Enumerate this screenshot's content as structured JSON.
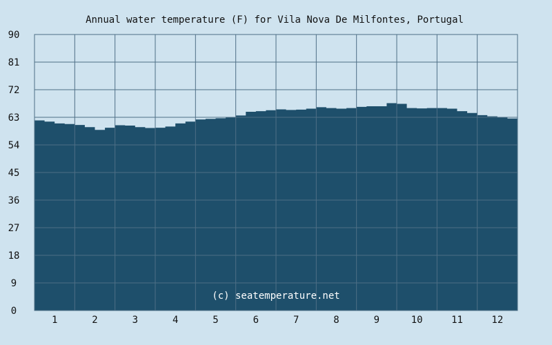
{
  "chart_data": {
    "type": "area",
    "title": "Annual water temperature (F) for Vila Nova De Milfontes, Portugal",
    "xlabel": "",
    "ylabel": "",
    "ylim": [
      0,
      90
    ],
    "xlim": [
      0.5,
      12.5
    ],
    "yticks": [
      "0",
      "9",
      "18",
      "27",
      "36",
      "45",
      "54",
      "63",
      "72",
      "81",
      "90"
    ],
    "xticks": [
      "1",
      "2",
      "3",
      "4",
      "5",
      "6",
      "7",
      "8",
      "9",
      "10",
      "11",
      "12"
    ],
    "grid": true,
    "watermark": "(c) seatemperature.net",
    "series": [
      {
        "color": "#1e4f6b",
        "x": [
          0.5,
          0.75,
          1.0,
          1.25,
          1.5,
          1.75,
          2.0,
          2.25,
          2.5,
          2.75,
          3.0,
          3.25,
          3.5,
          3.75,
          4.0,
          4.25,
          4.5,
          4.75,
          5.0,
          5.25,
          5.5,
          5.75,
          6.0,
          6.25,
          6.5,
          6.75,
          7.0,
          7.25,
          7.5,
          7.75,
          8.0,
          8.25,
          8.5,
          8.75,
          9.0,
          9.25,
          9.5,
          9.75,
          10.0,
          10.25,
          10.5,
          10.75,
          11.0,
          11.25,
          11.5,
          11.75,
          12.0,
          12.25,
          12.5
        ],
        "y": [
          62.0,
          61.6,
          61.0,
          60.8,
          60.5,
          59.8,
          58.9,
          59.6,
          60.4,
          60.3,
          59.8,
          59.5,
          59.6,
          60.0,
          61.0,
          61.6,
          62.3,
          62.5,
          62.7,
          63.1,
          63.6,
          64.8,
          65.0,
          65.3,
          65.6,
          65.4,
          65.5,
          65.8,
          66.3,
          66.0,
          65.8,
          66.0,
          66.4,
          66.6,
          66.6,
          67.6,
          67.4,
          66.0,
          65.9,
          66.0,
          66.0,
          65.8,
          65.0,
          64.4,
          63.7,
          63.3,
          63.0,
          62.6,
          62.3
        ]
      }
    ]
  }
}
